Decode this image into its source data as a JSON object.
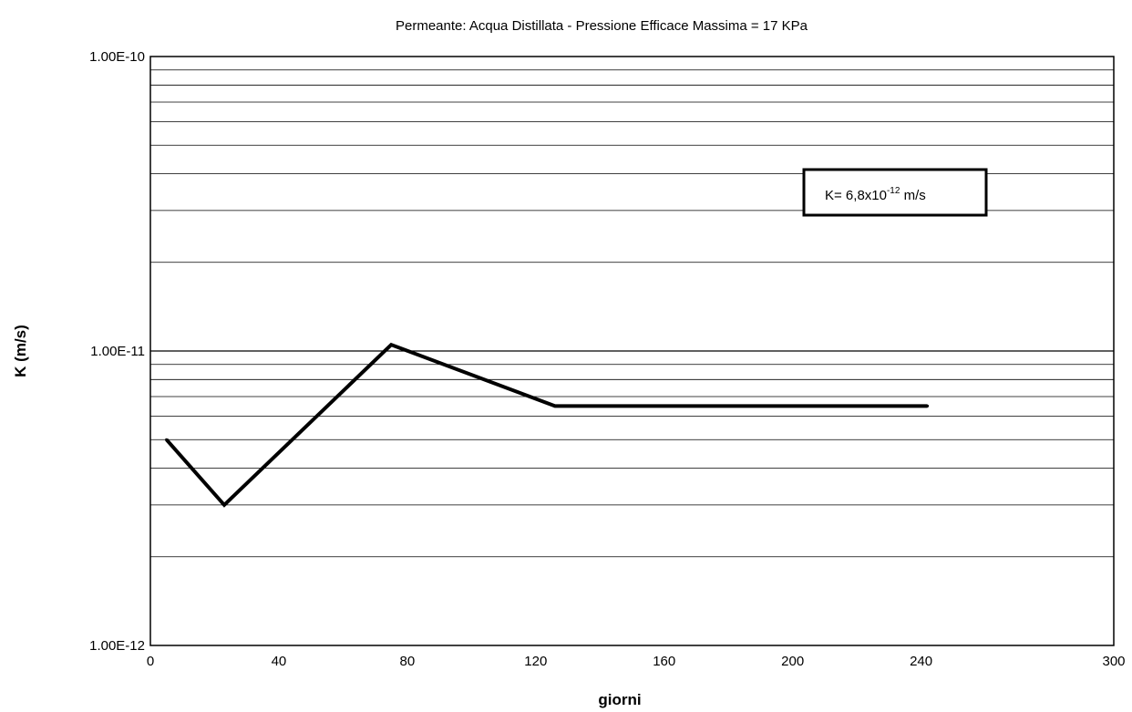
{
  "chart_data": {
    "type": "line",
    "title": "Permeante: Acqua Distillata - Pressione Efficace Massima = 17 KPa",
    "xlabel": "giorni",
    "ylabel": "K (m/s)",
    "xlim": [
      0,
      300
    ],
    "ylim": [
      1e-12,
      1e-10
    ],
    "y_scale": "log",
    "grid": true,
    "x_ticks": [
      0,
      40,
      80,
      120,
      160,
      200,
      240,
      300
    ],
    "x_tick_labels": [
      "0",
      "40",
      "80",
      "120",
      "160",
      "200",
      "240",
      "300"
    ],
    "y_ticks": [
      1e-12,
      1e-11,
      1e-10
    ],
    "y_tick_labels": [
      "1.00E-12",
      "1.00E-11",
      "1.00E-10"
    ],
    "series": [
      {
        "x": [
          5,
          23,
          75,
          126,
          242
        ],
        "y": [
          5e-12,
          3e-12,
          1.05e-11,
          6.5e-12,
          6.5e-12
        ]
      }
    ],
    "annotation": {
      "prefix": "K= 6,8x10",
      "exponent": "-12",
      "unit": " m/s"
    },
    "line_color": "#000000"
  }
}
